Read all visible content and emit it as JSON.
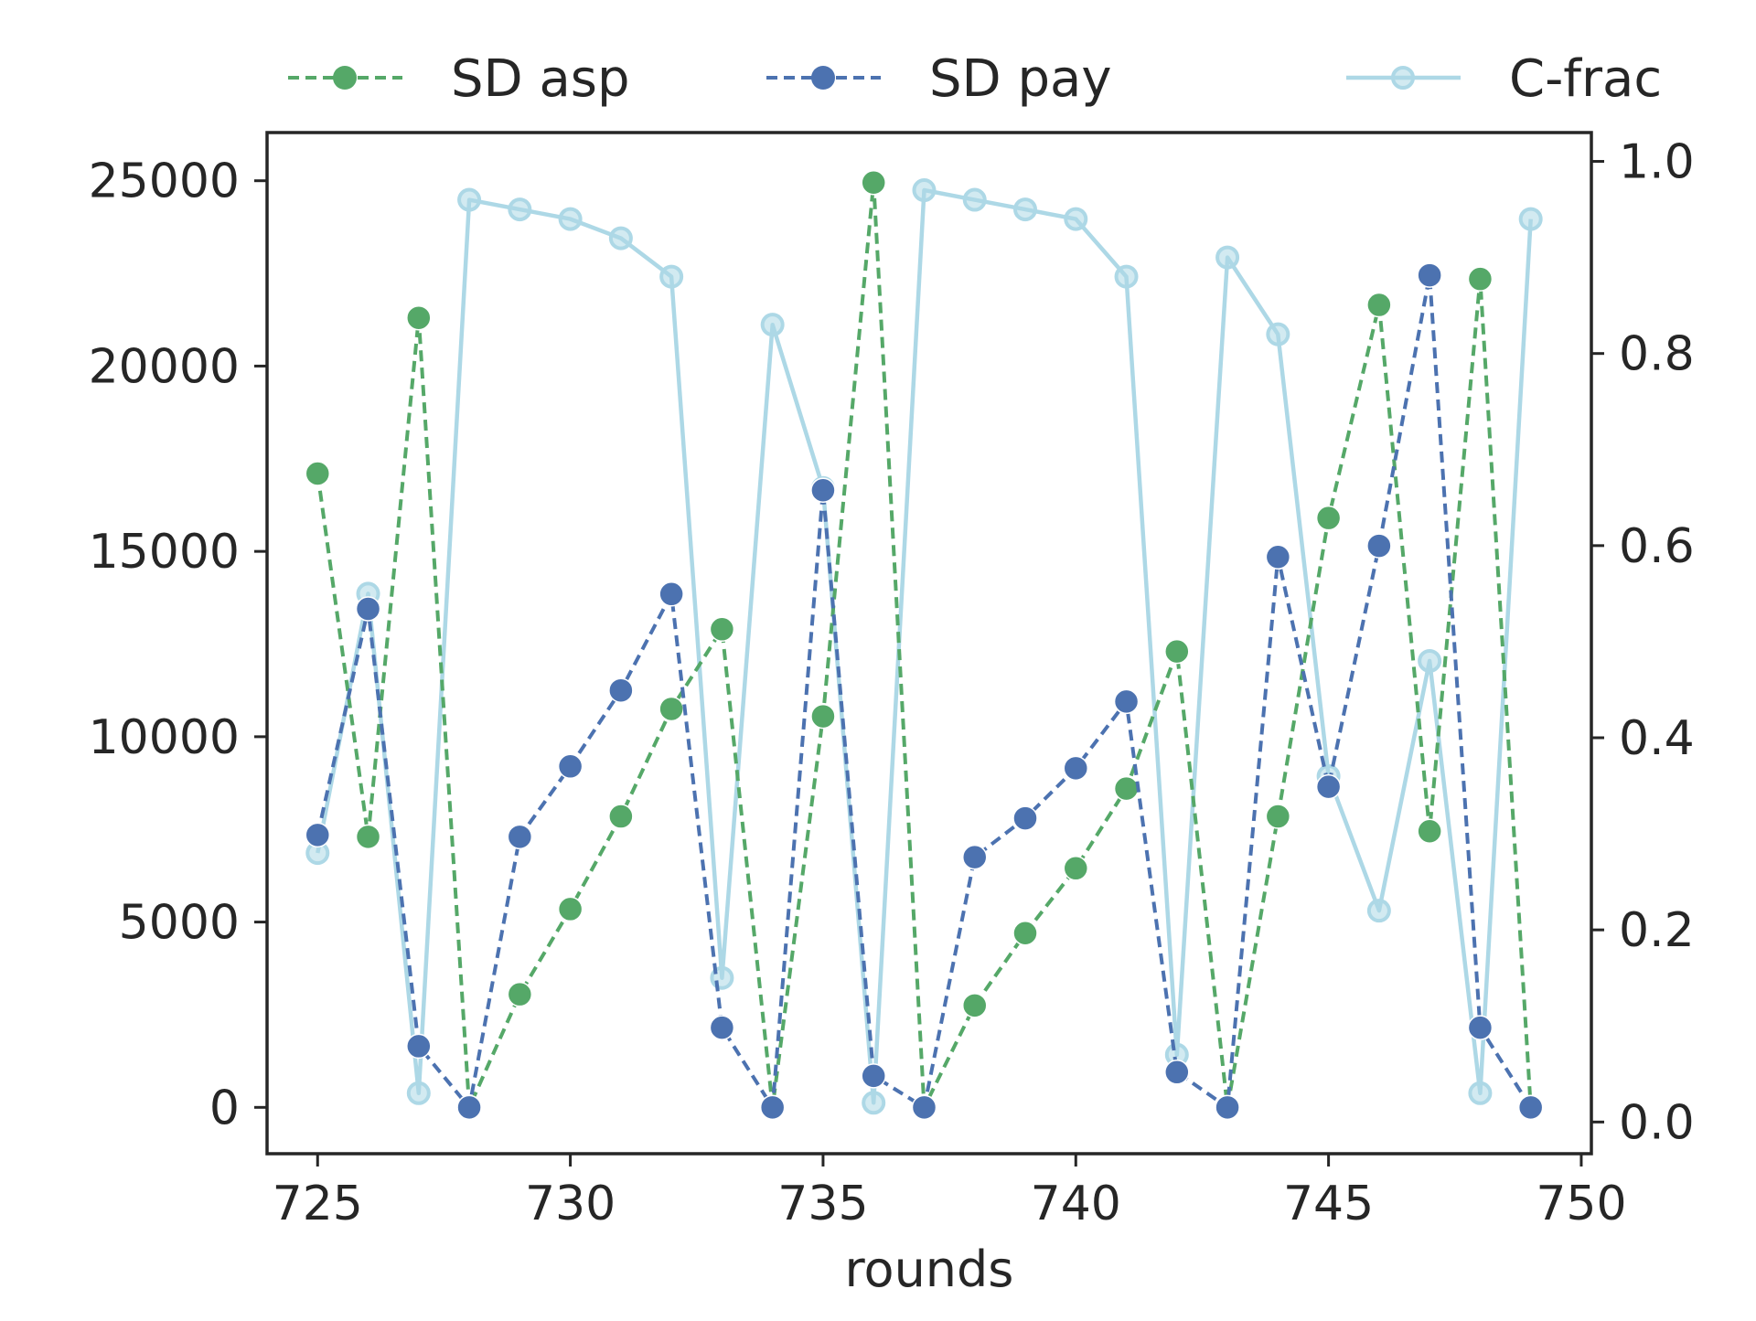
{
  "chart_data": {
    "type": "line",
    "xlabel": "rounds",
    "ylabel": "",
    "y2label": "",
    "xlim": [
      724,
      750.2
    ],
    "ylim": [
      -1250,
      26300
    ],
    "y2lim": [
      -0.033,
      1.03
    ],
    "x_ticks": [
      725,
      730,
      735,
      740,
      745,
      750
    ],
    "y_ticks": [
      0,
      5000,
      10000,
      15000,
      20000,
      25000
    ],
    "y2_ticks": [
      0.0,
      0.2,
      0.4,
      0.6,
      0.8,
      1.0
    ],
    "x_tick_labels": [
      "725",
      "730",
      "735",
      "740",
      "745",
      "750"
    ],
    "y_tick_labels": [
      "0",
      "5000",
      "10000",
      "15000",
      "20000",
      "25000"
    ],
    "y2_tick_labels": [
      "0.0",
      "0.2",
      "0.4",
      "0.6",
      "0.8",
      "1.0"
    ],
    "grid": false,
    "legend_position": "top",
    "x": [
      725,
      726,
      727,
      728,
      729,
      730,
      731,
      732,
      733,
      734,
      735,
      736,
      737,
      738,
      739,
      740,
      741,
      742,
      743,
      744,
      745,
      746,
      747,
      748,
      749
    ],
    "series": [
      {
        "name": "SD asp",
        "axis": "left",
        "color": "#55a868",
        "line_style": "dashed",
        "marker": "filled-circle",
        "values": [
          17100,
          7300,
          21300,
          0,
          3050,
          5350,
          7850,
          10750,
          12900,
          0,
          10550,
          24950,
          0,
          2750,
          4700,
          6450,
          8600,
          12300,
          0,
          7850,
          15900,
          21650,
          7450,
          22350,
          0
        ]
      },
      {
        "name": "SD pay",
        "axis": "left",
        "color": "#4c72b0",
        "line_style": "dashed",
        "marker": "filled-circle",
        "values": [
          7350,
          13450,
          1650,
          0,
          7300,
          9200,
          11250,
          13850,
          2150,
          0,
          16650,
          850,
          0,
          6750,
          7800,
          9150,
          10950,
          950,
          0,
          14850,
          8650,
          15150,
          22450,
          2150,
          0
        ]
      },
      {
        "name": "C-frac",
        "axis": "right",
        "color": "#add8e6",
        "line_style": "solid",
        "marker": "hollow-circle",
        "values": [
          0.28,
          0.55,
          0.03,
          0.96,
          0.95,
          0.94,
          0.92,
          0.88,
          0.15,
          0.83,
          0.66,
          0.02,
          0.97,
          0.96,
          0.95,
          0.94,
          0.88,
          0.07,
          0.9,
          0.82,
          0.36,
          0.22,
          0.48,
          0.03,
          0.94
        ]
      }
    ]
  }
}
